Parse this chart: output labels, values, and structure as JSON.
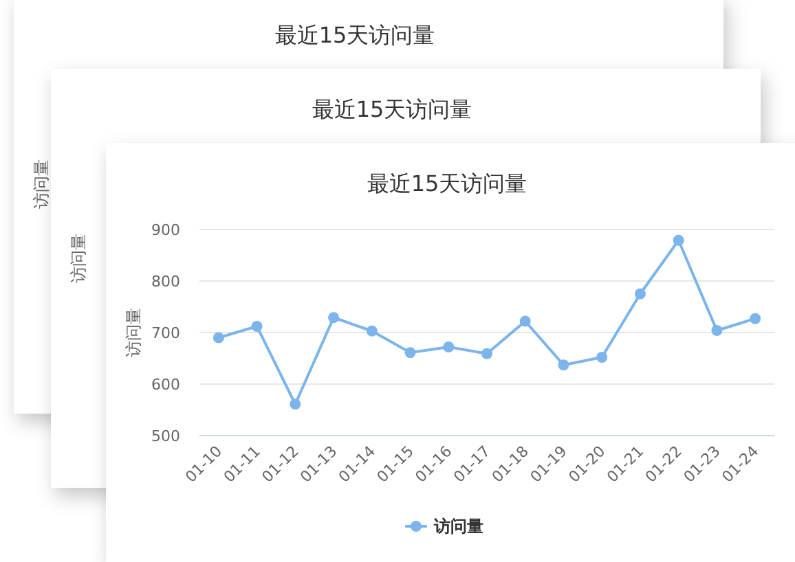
{
  "chart_data": [
    {
      "type": "other",
      "title": "最近15天访问量",
      "ylabel": "访问量"
    },
    {
      "type": "other",
      "title": "最近15天访问量",
      "ylabel": "访问量"
    },
    {
      "type": "line",
      "title": "最近15天访问量",
      "ylabel": "访问量",
      "categories": [
        "01-10",
        "01-11",
        "01-12",
        "01-13",
        "01-14",
        "01-15",
        "01-16",
        "01-17",
        "01-18",
        "01-19",
        "01-20",
        "01-21",
        "01-22",
        "01-23",
        "01-24"
      ],
      "series": [
        {
          "name": "访问量",
          "color": "#7cb5ec",
          "values": [
            690,
            712,
            561,
            729,
            703,
            661,
            672,
            659,
            722,
            637,
            652,
            775,
            879,
            704,
            727
          ]
        }
      ],
      "ylim": [
        500,
        900
      ],
      "yticks": [
        500,
        600,
        700,
        800,
        900
      ],
      "grid": "y",
      "legend": "bottom",
      "marker": "circle"
    }
  ]
}
